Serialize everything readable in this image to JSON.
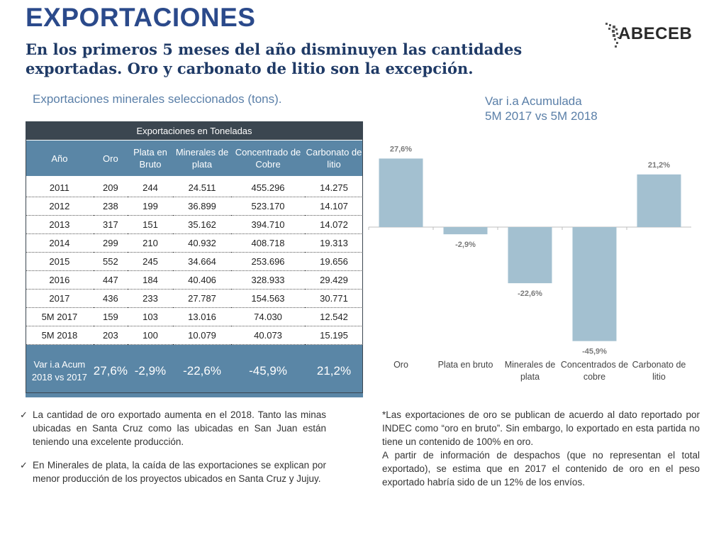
{
  "header": {
    "title": "EXPORTACIONES",
    "subtitle": "En los primeros 5 meses del año disminuyen las cantidades exportadas. Oro y carbonato de litio son la excepción.",
    "logo_text": "ABECEB"
  },
  "table": {
    "caption": "Exportaciones minerales seleccionados (tons).",
    "group_header": "Exportaciones en Toneladas",
    "columns": [
      "Año",
      "Oro",
      "Plata en Bruto",
      "Minerales de plata",
      "Concentrado de Cobre",
      "Carbonato de litio"
    ],
    "rows": [
      [
        "2011",
        "209",
        "244",
        "24.511",
        "455.296",
        "14.275"
      ],
      [
        "2012",
        "238",
        "199",
        "36.899",
        "523.170",
        "14.107"
      ],
      [
        "2013",
        "317",
        "151",
        "35.162",
        "394.710",
        "14.072"
      ],
      [
        "2014",
        "299",
        "210",
        "40.932",
        "408.718",
        "19.313"
      ],
      [
        "2015",
        "552",
        "245",
        "34.664",
        "253.696",
        "19.656"
      ],
      [
        "2016",
        "447",
        "184",
        "40.406",
        "328.933",
        "29.429"
      ],
      [
        "2017",
        "436",
        "233",
        "27.787",
        "154.563",
        "30.771"
      ],
      [
        "5M 2017",
        "159",
        "103",
        "13.016",
        "74.030",
        "12.542"
      ],
      [
        "5M 2018",
        "203",
        "100",
        "10.079",
        "40.073",
        "15.195"
      ]
    ],
    "acum_label": "Var i.a Acum 2018 vs 2017",
    "acum_values": [
      "27,6%",
      "-2,9%",
      "-22,6%",
      "-45,9%",
      "21,2%"
    ]
  },
  "chart_title_line1": "Var i.a Acumulada",
  "chart_title_line2": "5M 2017 vs 5M 2018",
  "chart_data": {
    "type": "bar",
    "title": "Var i.a Acumulada 5M 2017 vs 5M 2018",
    "categories": [
      "Oro",
      "Plata en bruto",
      "Minerales de plata",
      "Concentrados de cobre",
      "Carbonato de litio"
    ],
    "values": [
      27.6,
      -2.9,
      -22.6,
      -45.9,
      21.2
    ],
    "data_labels": [
      "27,6%",
      "-2,9%",
      "-22,6%",
      "-45,9%",
      "21,2%"
    ],
    "ylim": [
      -50,
      30
    ],
    "grid": false,
    "bar_color": "#a3c0d0"
  },
  "notes": {
    "left": [
      "La cantidad de oro exportado aumenta en el 2018. Tanto las minas ubicadas en Santa Cruz como las ubicadas en San Juan están teniendo una excelente producción.",
      "En Minerales de plata, la caída de las exportaciones se explican por menor producción de los proyectos ubicados en Santa Cruz y Jujuy."
    ],
    "right_p1": "*Las exportaciones de oro se publican de acuerdo al dato reportado por INDEC como “oro en bruto”. Sin embargo, lo exportado en esta partida no tiene un contenido de 100% en oro.",
    "right_p2": "A partir de información de despachos (que no representan el total exportado), se estima que en 2017 el contenido de oro en el peso exportado habría sido de un 12% de los envíos."
  },
  "colors": {
    "title": "#2b4a8b",
    "table_header": "#5a86a6",
    "table_top": "#3b4650",
    "caption": "#5a7fa8",
    "bar": "#a3c0d0"
  }
}
